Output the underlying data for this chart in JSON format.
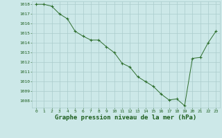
{
  "x": [
    0,
    1,
    2,
    3,
    4,
    5,
    6,
    7,
    8,
    9,
    10,
    11,
    12,
    13,
    14,
    15,
    16,
    17,
    18,
    19,
    20,
    21,
    22,
    23
  ],
  "y": [
    1018.0,
    1018.0,
    1017.8,
    1017.0,
    1016.5,
    1015.2,
    1014.7,
    1014.3,
    1014.3,
    1013.6,
    1013.0,
    1011.9,
    1011.5,
    1010.5,
    1010.0,
    1009.5,
    1008.7,
    1008.1,
    1008.2,
    1007.5,
    1012.4,
    1012.5,
    1014.0,
    1015.2
  ],
  "line_color": "#2d6e2d",
  "marker": "+",
  "marker_size": 3,
  "marker_color": "#2d6e2d",
  "bg_color": "#cce8e8",
  "grid_color": "#aacccc",
  "xlabel": "Graphe pression niveau de la mer (hPa)",
  "xlabel_fontsize": 6.5,
  "xlabel_color": "#1a5c1a",
  "tick_color": "#1a5c1a",
  "tick_fontsize": 4.5,
  "ylim": [
    1007.3,
    1018.3
  ],
  "xlim": [
    -0.5,
    23.5
  ],
  "yticks": [
    1008,
    1009,
    1010,
    1011,
    1012,
    1013,
    1014,
    1015,
    1016,
    1017,
    1018
  ],
  "xticks": [
    0,
    1,
    2,
    3,
    4,
    5,
    6,
    7,
    8,
    9,
    10,
    11,
    12,
    13,
    14,
    15,
    16,
    17,
    18,
    19,
    20,
    21,
    22,
    23
  ]
}
